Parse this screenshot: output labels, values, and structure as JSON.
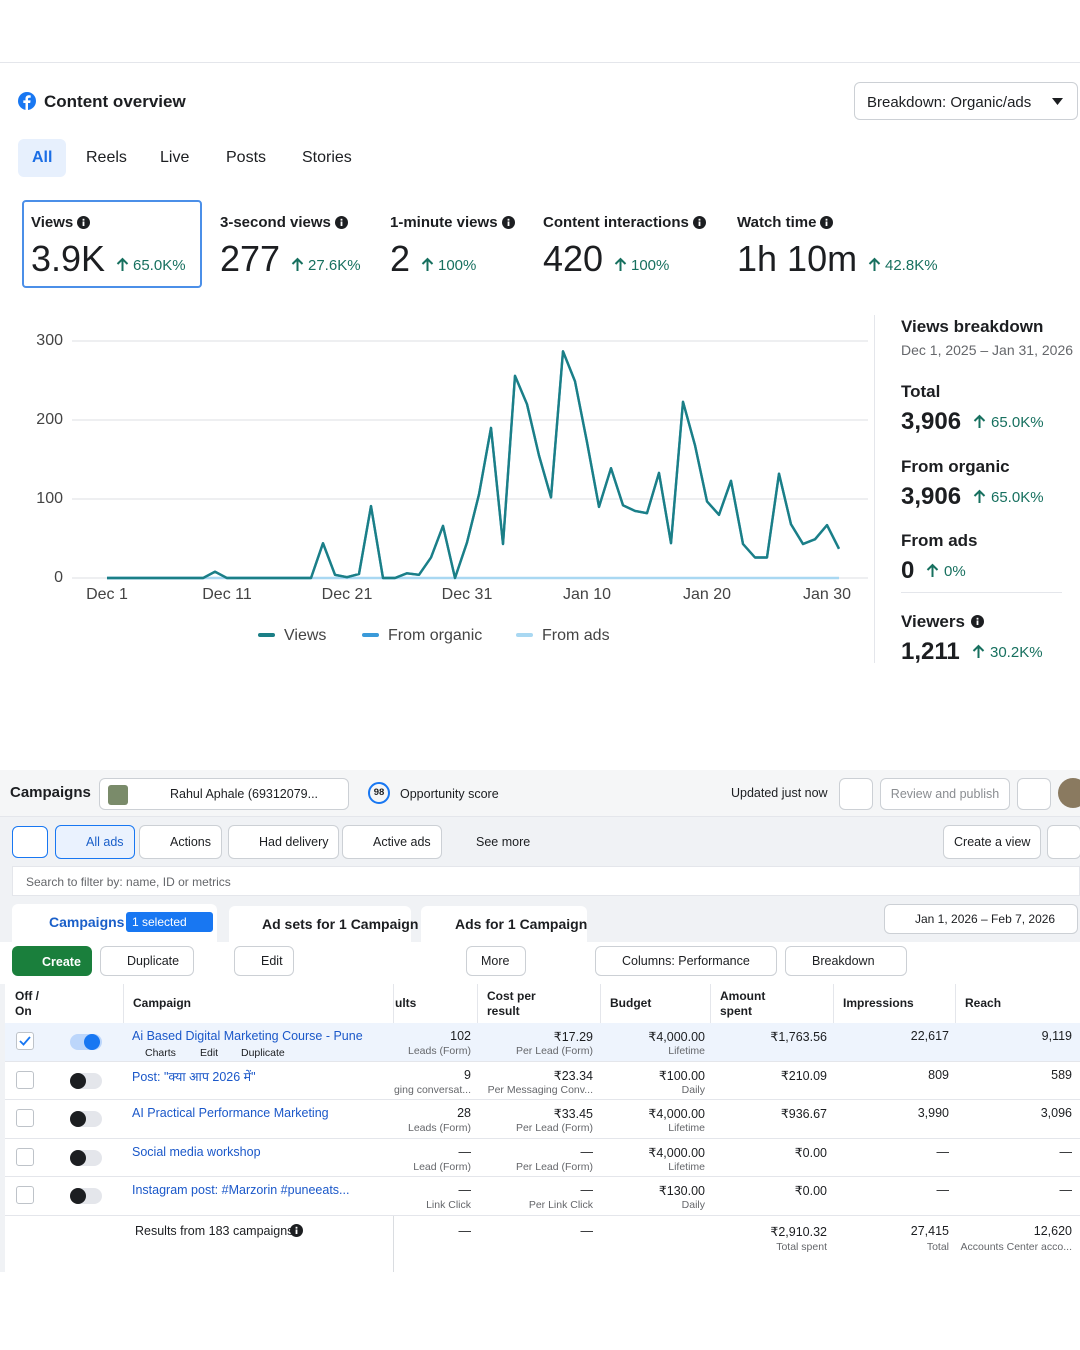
{
  "header": {
    "title": "Content overview",
    "breakdown": "Breakdown: Organic/ads"
  },
  "tabs": [
    "All",
    "Reels",
    "Live",
    "Posts",
    "Stories"
  ],
  "metrics": [
    {
      "label": "Views",
      "value": "3.9K",
      "change": "65.0K%"
    },
    {
      "label": "3-second views",
      "value": "277",
      "change": "27.6K%"
    },
    {
      "label": "1-minute views",
      "value": "2",
      "change": "100%"
    },
    {
      "label": "Content interactions",
      "value": "420",
      "change": "100%"
    },
    {
      "label": "Watch time",
      "value": "1h 10m",
      "change": "42.8K%"
    }
  ],
  "chart_data": {
    "type": "line",
    "categories": [
      "Dec 1",
      null,
      null,
      null,
      null,
      null,
      null,
      null,
      null,
      null,
      "Dec 11",
      null,
      null,
      null,
      null,
      null,
      null,
      null,
      null,
      null,
      "Dec 21",
      null,
      null,
      null,
      null,
      null,
      null,
      null,
      null,
      null,
      "Dec 31",
      null,
      null,
      null,
      null,
      null,
      null,
      null,
      null,
      null,
      "Jan 10",
      null,
      null,
      null,
      null,
      null,
      null,
      null,
      null,
      null,
      "Jan 20",
      null,
      null,
      null,
      null,
      null,
      null,
      null,
      null,
      null,
      "Jan 30",
      null
    ],
    "series": [
      {
        "name": "Views",
        "color": "#1b7f86",
        "values": [
          0,
          0,
          0,
          0,
          0,
          0,
          0,
          0,
          0,
          8,
          0,
          0,
          0,
          0,
          0,
          0,
          0,
          0,
          44,
          4,
          1,
          5,
          91,
          0,
          0,
          6,
          4,
          26,
          66,
          0,
          45,
          106,
          190,
          43,
          256,
          220,
          155,
          102,
          287,
          249,
          172,
          90,
          139,
          92,
          85,
          82,
          133,
          44,
          223,
          168,
          97,
          80,
          123,
          43,
          26,
          26,
          132,
          68,
          43,
          49,
          67,
          37
        ]
      },
      {
        "name": "From organic",
        "color": "#3a9ad9",
        "values": [
          0,
          0,
          0,
          0,
          0,
          0,
          0,
          0,
          0,
          8,
          0,
          0,
          0,
          0,
          0,
          0,
          0,
          0,
          44,
          4,
          1,
          5,
          91,
          0,
          0,
          6,
          4,
          26,
          66,
          0,
          45,
          106,
          190,
          43,
          256,
          220,
          155,
          102,
          287,
          249,
          172,
          90,
          139,
          92,
          85,
          82,
          133,
          44,
          223,
          168,
          97,
          80,
          123,
          43,
          26,
          26,
          132,
          68,
          43,
          49,
          67,
          37
        ]
      },
      {
        "name": "From ads",
        "color": "#a9d8f2",
        "values": [
          0,
          0,
          0,
          0,
          0,
          0,
          0,
          0,
          0,
          0,
          0,
          0,
          0,
          0,
          0,
          0,
          0,
          0,
          0,
          0,
          0,
          0,
          0,
          0,
          0,
          0,
          0,
          0,
          0,
          0,
          0,
          0,
          0,
          0,
          0,
          0,
          0,
          0,
          0,
          0,
          0,
          0,
          0,
          0,
          0,
          0,
          0,
          0,
          0,
          0,
          0,
          0,
          0,
          0,
          0,
          0,
          0,
          0,
          0,
          0,
          0,
          0
        ]
      }
    ],
    "ylim": [
      0,
      300
    ],
    "yticks": [
      0,
      100,
      200,
      300
    ],
    "grid": true
  },
  "breakdown_panel": {
    "title": "Views breakdown",
    "range": "Dec 1, 2025 – Jan 31, 2026",
    "items": [
      {
        "label": "Total",
        "value": "3,906",
        "change": "65.0K%"
      },
      {
        "label": "From organic",
        "value": "3,906",
        "change": "65.0K%"
      },
      {
        "label": "From ads",
        "value": "0",
        "change": "0%"
      },
      {
        "label": "Viewers",
        "value": "1,211",
        "change": "30.2K%"
      }
    ]
  },
  "campaigns": {
    "title": "Campaigns",
    "account": "Rahul Aphale (69312079...",
    "score": "98",
    "score_label": "Opportunity score",
    "updated": "Updated just now",
    "review": "Review and publish",
    "filters": [
      "All ads",
      "Actions",
      "Had delivery",
      "Active ads",
      "See more"
    ],
    "create_view": "Create a view",
    "search": "Search to filter by: name, ID or metrics",
    "level_tabs": {
      "campaigns": "Campaigns",
      "selected": "1 selected",
      "ad_sets": "Ad sets for 1 Campaign",
      "ads": "Ads for 1 Campaign"
    },
    "date_range": "Jan 1, 2026 – Feb 7, 2026",
    "actions": {
      "create": "Create",
      "duplicate": "Duplicate",
      "edit": "Edit",
      "more": "More",
      "columns": "Columns: Performance",
      "breakdown": "Breakdown"
    },
    "columns": [
      "Off / On",
      "Campaign",
      "ults",
      "Cost per result",
      "Budget",
      "Amount spent",
      "Impressions",
      "Reach"
    ],
    "rows": [
      {
        "name": "Ai Based Digital Marketing Course - Pune",
        "on": true,
        "selected": true,
        "row_actions": [
          "Charts",
          "Edit",
          "Duplicate"
        ],
        "results": "102",
        "results_type": "Leads (Form)",
        "cost": "₹17.29",
        "cost_type": "Per Lead (Form)",
        "budget": "₹4,000.00",
        "budget_type": "Lifetime",
        "spent": "₹1,763.56",
        "impressions": "22,617",
        "reach": "9,119"
      },
      {
        "name": "Post: \"क्या आप 2026 में\"",
        "on": false,
        "selected": false,
        "results": "9",
        "results_type": "ging conversat...",
        "cost": "₹23.34",
        "cost_type": "Per Messaging Conv...",
        "budget": "₹100.00",
        "budget_type": "Daily",
        "spent": "₹210.09",
        "impressions": "809",
        "reach": "589"
      },
      {
        "name": "AI Practical Performance Marketing",
        "on": false,
        "selected": false,
        "results": "28",
        "results_type": "Leads (Form)",
        "cost": "₹33.45",
        "cost_type": "Per Lead (Form)",
        "budget": "₹4,000.00",
        "budget_type": "Lifetime",
        "spent": "₹936.67",
        "impressions": "3,990",
        "reach": "3,096"
      },
      {
        "name": "Social media workshop",
        "on": false,
        "selected": false,
        "results": "—",
        "results_type": "Lead (Form)",
        "cost": "—",
        "cost_type": "Per Lead (Form)",
        "budget": "₹4,000.00",
        "budget_type": "Lifetime",
        "spent": "₹0.00",
        "impressions": "—",
        "reach": "—"
      },
      {
        "name": "Instagram post: #Marzorin #puneeats...",
        "on": false,
        "selected": false,
        "results": "—",
        "results_type": "Link Click",
        "cost": "—",
        "cost_type": "Per Link Click",
        "budget": "₹130.00",
        "budget_type": "Daily",
        "spent": "₹0.00",
        "impressions": "—",
        "reach": "—"
      }
    ],
    "footer": {
      "label": "Results from 183 campaigns",
      "results": "—",
      "cost": "—",
      "spent": "₹2,910.32",
      "spent_note": "Total spent",
      "impressions": "27,415",
      "impressions_note": "Total",
      "reach": "12,620",
      "reach_note": "Accounts Center acco..."
    }
  }
}
